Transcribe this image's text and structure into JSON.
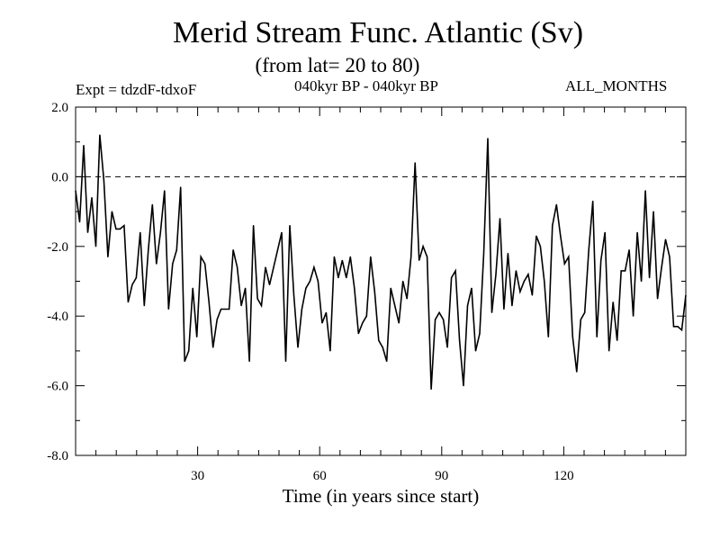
{
  "chart_data": {
    "type": "line",
    "title": "Merid Stream Func. Atlantic (Sv)",
    "subtitle": "(from lat= 20 to 80)",
    "annotations": {
      "left": "Expt = tdzdF-tdxoF",
      "center": "040kyr BP - 040kyr BP",
      "right": "ALL_MONTHS"
    },
    "xlabel": "Time (in years since start)",
    "ylabel": "",
    "xlim": [
      0,
      150
    ],
    "ylim": [
      -8.0,
      2.0
    ],
    "x_ticks": [
      30,
      60,
      90,
      120
    ],
    "x_tick_labels": [
      "30",
      "60",
      "90",
      "120"
    ],
    "y_ticks": [
      2.0,
      0.0,
      -2.0,
      -4.0,
      -6.0,
      -8.0
    ],
    "y_tick_labels": [
      "2.0",
      "0.0",
      "-2.0",
      "-4.0",
      "-6.0",
      "-8.0"
    ],
    "reference_line": 0.0,
    "grid": false,
    "line_color": "#000000",
    "series": [
      {
        "values": [
          -0.4,
          -1.3,
          0.9,
          -1.6,
          -0.6,
          -2.0,
          1.2,
          -0.1,
          -2.3,
          -1.0,
          -1.5,
          -1.5,
          -1.4,
          -3.6,
          -3.1,
          -2.9,
          -1.6,
          -3.7,
          -2.1,
          -0.8,
          -2.5,
          -1.6,
          -0.4,
          -3.8,
          -2.5,
          -2.1,
          -0.3,
          -5.3,
          -5.0,
          -3.2,
          -4.6,
          -2.3,
          -2.5,
          -3.6,
          -4.9,
          -4.1,
          -3.8,
          -3.8,
          -3.8,
          -2.1,
          -2.6,
          -3.7,
          -3.2,
          -5.3,
          -1.4,
          -3.5,
          -3.7,
          -2.6,
          -3.1,
          -2.6,
          -2.1,
          -1.6,
          -5.3,
          -1.4,
          -3.4,
          -4.9,
          -3.8,
          -3.2,
          -3.0,
          -2.6,
          -3.0,
          -4.2,
          -3.9,
          -5.0,
          -2.3,
          -2.9,
          -2.4,
          -2.9,
          -2.3,
          -3.2,
          -4.5,
          -4.2,
          -4.0,
          -2.3,
          -3.3,
          -4.7,
          -4.9,
          -5.3,
          -3.2,
          -3.7,
          -4.2,
          -3.0,
          -3.5,
          -2.3,
          0.4,
          -2.4,
          -2.0,
          -2.3,
          -6.1,
          -4.1,
          -3.9,
          -4.1,
          -4.9,
          -2.9,
          -2.7,
          -4.7,
          -6.0,
          -3.7,
          -3.2,
          -5.0,
          -4.5,
          -2.2,
          1.1,
          -3.9,
          -2.8,
          -1.2,
          -3.8,
          -2.2,
          -3.7,
          -2.7,
          -3.3,
          -3.0,
          -2.8,
          -3.4,
          -1.7,
          -2.0,
          -3.0,
          -4.6,
          -1.4,
          -0.8,
          -1.7,
          -2.5,
          -2.3,
          -4.6,
          -5.6,
          -4.1,
          -3.9,
          -2.1,
          -0.7,
          -4.6,
          -2.4,
          -1.6,
          -5.0,
          -3.6,
          -4.7,
          -2.7,
          -2.7,
          -2.1,
          -4.0,
          -1.6,
          -3.0,
          -0.4,
          -2.9,
          -1.0,
          -3.5,
          -2.6,
          -1.8,
          -2.3,
          -4.3,
          -4.3,
          -4.4,
          -3.4
        ]
      }
    ]
  }
}
